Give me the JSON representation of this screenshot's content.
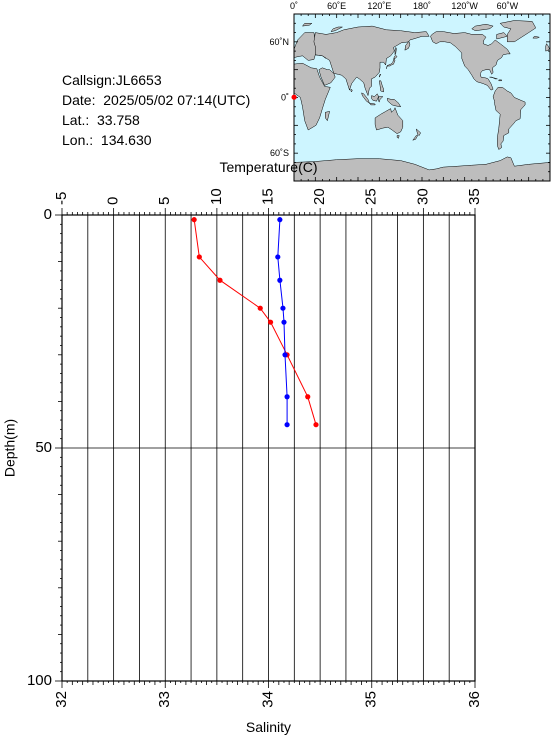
{
  "info": {
    "callsign": "Callsign:JL6653",
    "date": "Date:  2025/05/02 07:14(UTC)",
    "lat": "Lat.:  33.758",
    "lon": "Lon.:  134.630"
  },
  "map": {
    "top_ticks": [
      "0˚",
      "60˚E",
      "120˚E",
      "180˚",
      "120˚W",
      "60˚W"
    ],
    "lat_ticks": [
      "60˚N",
      "0˚",
      "60˚S"
    ],
    "ocean_color": "#cdf5ff",
    "land_color": "#bdbdbd",
    "marker_color": "#ff0000"
  },
  "chart_data": {
    "type": "line",
    "xlabel_top": "Temperature(C)",
    "xlabel_bottom": "Salinity",
    "ylabel": "Depth(m)",
    "temperature_range": [
      -5,
      35
    ],
    "salinity_range": [
      32,
      36
    ],
    "depth_range": [
      0,
      100
    ],
    "temperature_ticks": [
      "-5",
      "0",
      "5",
      "10",
      "15",
      "20",
      "25",
      "30",
      "35"
    ],
    "salinity_ticks": [
      "32",
      "33",
      "34",
      "35",
      "36"
    ],
    "depth_ticks": [
      "0",
      "50",
      "100"
    ],
    "series": [
      {
        "quantity": "temperature",
        "color": "#ff0000",
        "points": [
          {
            "depth": 1,
            "value": 7.8
          },
          {
            "depth": 9,
            "value": 8.3
          },
          {
            "depth": 14,
            "value": 10.3
          },
          {
            "depth": 20,
            "value": 14.2
          },
          {
            "depth": 23,
            "value": 15.2
          },
          {
            "depth": 30,
            "value": 16.8
          },
          {
            "depth": 39,
            "value": 18.8
          },
          {
            "depth": 45,
            "value": 19.6
          }
        ]
      },
      {
        "quantity": "salinity",
        "color": "#0000ff",
        "points": [
          {
            "depth": 1,
            "value": 34.11
          },
          {
            "depth": 9,
            "value": 34.09
          },
          {
            "depth": 14,
            "value": 34.11
          },
          {
            "depth": 20,
            "value": 34.14
          },
          {
            "depth": 23,
            "value": 34.15
          },
          {
            "depth": 30,
            "value": 34.16
          },
          {
            "depth": 39,
            "value": 34.18
          },
          {
            "depth": 45,
            "value": 34.18
          }
        ]
      }
    ]
  }
}
